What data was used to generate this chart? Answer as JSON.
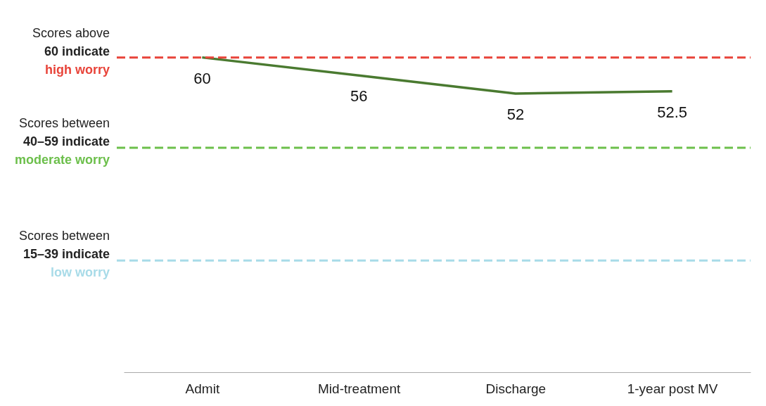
{
  "chart_data": {
    "type": "line",
    "tick_labels": "x",
    "categories": [
      "Admit",
      "Mid-treatment",
      "Discharge",
      "1-year post MV"
    ],
    "series": [
      {
        "color": "#4a7a30",
        "values": [
          60,
          56,
          52,
          52.5
        ]
      }
    ],
    "data_labels": true,
    "marker": "none",
    "line_style": "solid",
    "ref_lines": [
      {
        "axis": "y",
        "value": 60,
        "label": "Scores above 60 indicate high worry",
        "color": "#e8443a",
        "line_style": "dashed"
      },
      {
        "axis": "y",
        "value": 40,
        "label": "Scores between 40–59 indicate moderate worry",
        "color": "#6cbf4b",
        "line_style": "dashed"
      },
      {
        "axis": "y",
        "value": 15,
        "label": "Scores between 15–39 indicate low worry",
        "color": "#a8dbe8",
        "line_style": "dashed"
      }
    ]
  }
}
